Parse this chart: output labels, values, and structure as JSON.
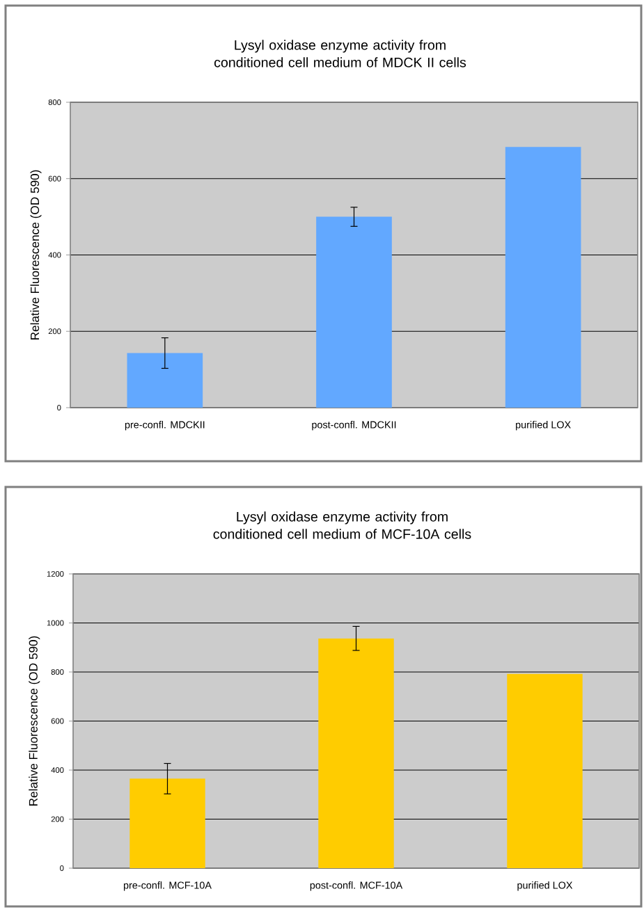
{
  "chart_data": [
    {
      "type": "bar",
      "title": "Lysyl oxidase enzyme activity from conditioned cell medium of MDCK II cells",
      "ylabel": "Relative Fluorescence (OD 590)",
      "categories": [
        "pre-confl. MDCKII",
        "post-confl. MDCKII",
        "purified LOX"
      ],
      "values": [
        143,
        500,
        683
      ],
      "errors": [
        40,
        25,
        null
      ],
      "color": "#62a8ff",
      "ylim": [
        0,
        800
      ],
      "yticks": [
        0,
        200,
        400,
        600,
        800
      ],
      "grid": "y"
    },
    {
      "type": "bar",
      "title": "Lysyl oxidase enzyme activity from conditioned cell medium of MCF-10A cells",
      "ylabel": "Relative Fluorescence (OD 590)",
      "categories": [
        "pre-confl. MCF-10A",
        "post-confl. MCF-10A",
        "purified LOX"
      ],
      "values": [
        365,
        937,
        792
      ],
      "errors": [
        62,
        49,
        null
      ],
      "color": "#ffcc00",
      "ylim": [
        0,
        1200
      ],
      "yticks": [
        0,
        200,
        400,
        600,
        800,
        1000,
        1200
      ],
      "grid": "y"
    }
  ]
}
